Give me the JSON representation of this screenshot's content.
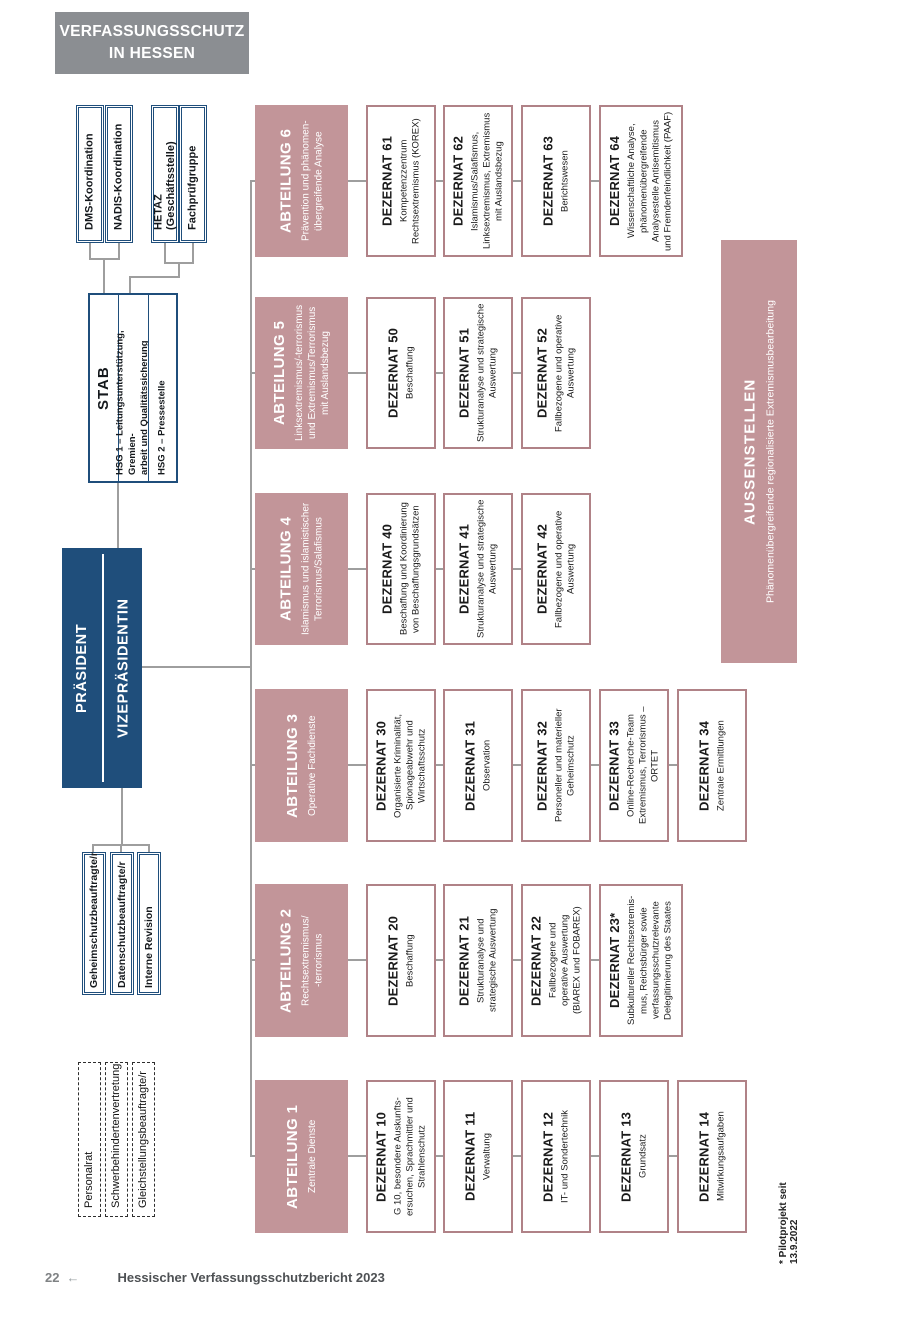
{
  "colors": {
    "dark_blue": "#1f4e7b",
    "mauve": "#c29599",
    "dezernat_border": "#b08287",
    "header_gray": "#8b8e92",
    "line_gray": "#9e9e9e"
  },
  "brand": {
    "title": "VERFASSUNGSSCHUTZ\nIN HESSEN"
  },
  "koordination": [
    {
      "label": "DMS-Koordination"
    },
    {
      "label": "NADIS-Koordination"
    },
    {
      "label": "HETAZ (Geschäftsstelle)"
    },
    {
      "label": "Fachprüfgruppe"
    }
  ],
  "stab": {
    "title": "STAB",
    "rows": [
      {
        "label": "HSG 1 – Leitungsunterstützung, Gremien-\narbeit und Qualitätssicherung"
      },
      {
        "label": "HSG 2 – Pressestelle"
      }
    ]
  },
  "leitung": {
    "president": "PRÄSIDENT",
    "vice": "VIZEPRÄSIDENTIN"
  },
  "beauftragte": [
    {
      "label": "Geheimschutzbeauftragte/r"
    },
    {
      "label": "Datenschutzbeauftragte/r"
    },
    {
      "label": "Interne Revision"
    }
  ],
  "vertretungen": [
    {
      "label": "Personalrat"
    },
    {
      "label": "Schwerbehindertenvertretung"
    },
    {
      "label": "Gleichstellungsbeauftragte/r"
    }
  ],
  "abteilungen": [
    {
      "name": "ABTEILUNG 1",
      "subtitle": "Zentrale Dienste",
      "dezernate": [
        {
          "name": "DEZERNAT 10",
          "subtitle": "G 10, besondere Auskunfts-\nersuchen, Sprachmittler und\nStrahlenschutz"
        },
        {
          "name": "DEZERNAT 11",
          "subtitle": "Verwaltung"
        },
        {
          "name": "DEZERNAT 12",
          "subtitle": "IT- und Sondertechnik"
        },
        {
          "name": "DEZERNAT 13",
          "subtitle": "Grundsatz"
        },
        {
          "name": "DEZERNAT 14",
          "subtitle": "Mitwirkungsaufgaben"
        }
      ]
    },
    {
      "name": "ABTEILUNG 2",
      "subtitle": "Rechtsextremismus/\n-terrorismus",
      "dezernate": [
        {
          "name": "DEZERNAT 20",
          "subtitle": "Beschaffung"
        },
        {
          "name": "DEZERNAT 21",
          "subtitle": "Strukturanalyse und\nstrategische Auswertung"
        },
        {
          "name": "DEZERNAT 22",
          "subtitle": "Fallbezogene und\noperative Auswertung\n(BIAREX und FOBAREX)"
        },
        {
          "name": "DEZERNAT 23*",
          "subtitle": "Subkultureller Rechtsextremis-\nmus, Reichsbürger sowie\nverfassungsschutzrelevante\nDelegitimierung des Staates"
        }
      ]
    },
    {
      "name": "ABTEILUNG 3",
      "subtitle": "Operative Fachdienste",
      "dezernate": [
        {
          "name": "DEZERNAT 30",
          "subtitle": "Organisierte Kriminalität,\nSpionageabwehr und\nWirtschaftsschutz"
        },
        {
          "name": "DEZERNAT 31",
          "subtitle": "Observation"
        },
        {
          "name": "DEZERNAT 32",
          "subtitle": "Personeller und materieller\nGeheimschutz"
        },
        {
          "name": "DEZERNAT 33",
          "subtitle": "Online-Recherche-Team\nExtremismus, Terrorismus – ORTET"
        },
        {
          "name": "DEZERNAT 34",
          "subtitle": "Zentrale Ermittlungen"
        }
      ]
    },
    {
      "name": "ABTEILUNG 4",
      "subtitle": "Islamismus und islamistischer\nTerrorismus/Salafismus",
      "dezernate": [
        {
          "name": "DEZERNAT 40",
          "subtitle": "Beschaffung und Koordinierung\nvon Beschaffungsgrundsätzen"
        },
        {
          "name": "DEZERNAT 41",
          "subtitle": "Strukturanalyse und strategische\nAuswertung"
        },
        {
          "name": "DEZERNAT 42",
          "subtitle": "Fallbezogene und operative\nAuswertung"
        }
      ]
    },
    {
      "name": "ABTEILUNG 5",
      "subtitle": "Linksextremismus/-terrorismus\nund Extremismus/Terrorismus\nmit Auslandsbezug",
      "dezernate": [
        {
          "name": "DEZERNAT 50",
          "subtitle": "Beschaffung"
        },
        {
          "name": "DEZERNAT 51",
          "subtitle": "Strukturanalyse und strategische\nAuswertung"
        },
        {
          "name": "DEZERNAT 52",
          "subtitle": "Fallbezogene und operative\nAuswertung"
        }
      ]
    },
    {
      "name": "ABTEILUNG 6",
      "subtitle": "Prävention und phänomen-\nübergreifende Analyse",
      "dezernate": [
        {
          "name": "DEZERNAT 61",
          "subtitle": "Kompetenzzentrum\nRechtsextremismus (KOREX)"
        },
        {
          "name": "DEZERNAT 62",
          "subtitle": "Islamismus/Salafismus,\nLinksextremismus, Extremismus\nmit Auslandsbezug"
        },
        {
          "name": "DEZERNAT 63",
          "subtitle": "Berichtswesen"
        },
        {
          "name": "DEZERNAT 64",
          "subtitle": "Wissenschaftliche Analyse,\nphänomenübergreifende\nAnalysestelle Antisemitismus\nund Fremdenfeindlichkeit (PAAF)"
        }
      ]
    }
  ],
  "aussenstellen": {
    "title": "AUSSENSTELLEN",
    "subtitle": "Phänomenübergreifende regionalisierte Extremismusbearbeitung"
  },
  "footnote": "* Pilotprojekt seit 13.9.2022",
  "footer": {
    "page": "22",
    "arrow": "←",
    "title": "Hessischer Verfassungsschutzbericht 2023"
  }
}
